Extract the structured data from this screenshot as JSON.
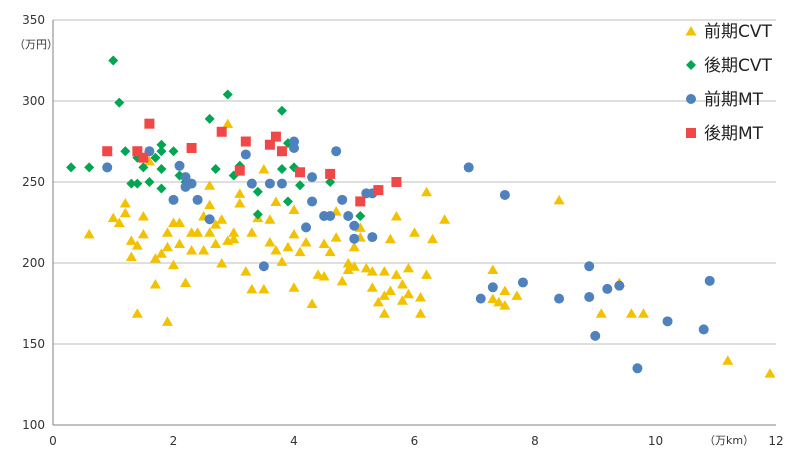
{
  "chart_data": {
    "type": "scatter",
    "title": "",
    "xlabel": "",
    "ylabel": "",
    "x_unit": "（万km）",
    "y_unit": "（万円）",
    "xlim": [
      0,
      12
    ],
    "ylim": [
      100,
      350
    ],
    "x_ticks": [
      0,
      2,
      4,
      6,
      8,
      10,
      12
    ],
    "y_ticks": [
      100,
      150,
      200,
      250,
      300,
      350
    ],
    "grid": "horizontal",
    "legend_position": "right",
    "series": [
      {
        "name": "前期CVT",
        "marker": "triangle",
        "color": "#f2c200",
        "points": [
          [
            0.6,
            218
          ],
          [
            1.0,
            228
          ],
          [
            1.1,
            225
          ],
          [
            1.2,
            231
          ],
          [
            1.2,
            237
          ],
          [
            1.3,
            204
          ],
          [
            1.3,
            214
          ],
          [
            1.4,
            211
          ],
          [
            1.5,
            229
          ],
          [
            1.5,
            218
          ],
          [
            1.4,
            169
          ],
          [
            1.7,
            187
          ],
          [
            1.7,
            203
          ],
          [
            1.8,
            206
          ],
          [
            1.9,
            210
          ],
          [
            1.9,
            219
          ],
          [
            2.0,
            225
          ],
          [
            2.0,
            199
          ],
          [
            1.9,
            164
          ],
          [
            2.1,
            225
          ],
          [
            2.1,
            212
          ],
          [
            2.2,
            188
          ],
          [
            2.3,
            208
          ],
          [
            2.3,
            219
          ],
          [
            2.4,
            219
          ],
          [
            2.5,
            229
          ],
          [
            2.5,
            208
          ],
          [
            2.6,
            219
          ],
          [
            2.6,
            236
          ],
          [
            2.7,
            212
          ],
          [
            2.7,
            224
          ],
          [
            2.8,
            200
          ],
          [
            2.8,
            227
          ],
          [
            2.9,
            214
          ],
          [
            3.0,
            219
          ],
          [
            3.0,
            215
          ],
          [
            3.1,
            237
          ],
          [
            3.2,
            195
          ],
          [
            3.3,
            184
          ],
          [
            3.3,
            219
          ],
          [
            3.4,
            228
          ],
          [
            3.5,
            184
          ],
          [
            3.5,
            258
          ],
          [
            3.6,
            213
          ],
          [
            3.6,
            227
          ],
          [
            3.7,
            208
          ],
          [
            3.7,
            238
          ],
          [
            3.8,
            201
          ],
          [
            3.9,
            210
          ],
          [
            4.0,
            218
          ],
          [
            4.0,
            233
          ],
          [
            4.1,
            207
          ],
          [
            4.0,
            185
          ],
          [
            4.2,
            213
          ],
          [
            4.3,
            175
          ],
          [
            4.4,
            193
          ],
          [
            4.5,
            192
          ],
          [
            4.5,
            212
          ],
          [
            4.6,
            207
          ],
          [
            4.7,
            232
          ],
          [
            4.7,
            216
          ],
          [
            4.8,
            189
          ],
          [
            4.9,
            196
          ],
          [
            4.9,
            200
          ],
          [
            5.0,
            198
          ],
          [
            5.0,
            210
          ],
          [
            5.1,
            222
          ],
          [
            5.1,
            216
          ],
          [
            5.2,
            197
          ],
          [
            5.3,
            185
          ],
          [
            5.3,
            195
          ],
          [
            5.4,
            176
          ],
          [
            5.5,
            169
          ],
          [
            5.5,
            180
          ],
          [
            5.5,
            195
          ],
          [
            5.6,
            183
          ],
          [
            5.6,
            215
          ],
          [
            5.7,
            193
          ],
          [
            5.7,
            229
          ],
          [
            5.8,
            177
          ],
          [
            5.8,
            187
          ],
          [
            5.9,
            181
          ],
          [
            5.9,
            197
          ],
          [
            6.0,
            219
          ],
          [
            6.1,
            169
          ],
          [
            6.2,
            244
          ],
          [
            6.3,
            215
          ],
          [
            6.5,
            227
          ],
          [
            6.1,
            179
          ],
          [
            6.2,
            193
          ],
          [
            1.6,
            263
          ],
          [
            2.6,
            248
          ],
          [
            2.9,
            286
          ],
          [
            3.1,
            243
          ],
          [
            7.3,
            196
          ],
          [
            7.3,
            178
          ],
          [
            7.4,
            176
          ],
          [
            7.5,
            174
          ],
          [
            7.5,
            183
          ],
          [
            7.7,
            180
          ],
          [
            8.4,
            239
          ],
          [
            9.1,
            169
          ],
          [
            9.4,
            188
          ],
          [
            9.6,
            169
          ],
          [
            9.8,
            169
          ],
          [
            11.2,
            140
          ],
          [
            11.9,
            132
          ]
        ]
      },
      {
        "name": "後期CVT",
        "marker": "diamond",
        "color": "#00a651",
        "points": [
          [
            0.3,
            259
          ],
          [
            0.6,
            259
          ],
          [
            0.9,
            269
          ],
          [
            1.0,
            325
          ],
          [
            1.1,
            299
          ],
          [
            1.2,
            269
          ],
          [
            1.3,
            249
          ],
          [
            1.4,
            265
          ],
          [
            1.4,
            249
          ],
          [
            1.5,
            259
          ],
          [
            1.6,
            250
          ],
          [
            1.7,
            265
          ],
          [
            1.8,
            273
          ],
          [
            1.8,
            269
          ],
          [
            1.8,
            258
          ],
          [
            1.8,
            246
          ],
          [
            2.0,
            269
          ],
          [
            2.1,
            254
          ],
          [
            2.2,
            250
          ],
          [
            2.6,
            289
          ],
          [
            2.7,
            258
          ],
          [
            2.9,
            304
          ],
          [
            3.0,
            254
          ],
          [
            3.1,
            260
          ],
          [
            3.3,
            249
          ],
          [
            3.4,
            244
          ],
          [
            3.4,
            230
          ],
          [
            3.8,
            294
          ],
          [
            3.8,
            258
          ],
          [
            3.9,
            274
          ],
          [
            3.9,
            238
          ],
          [
            4.0,
            259
          ],
          [
            4.1,
            248
          ],
          [
            4.6,
            250
          ],
          [
            5.1,
            229
          ],
          [
            5.3,
            216
          ]
        ]
      },
      {
        "name": "前期MT",
        "marker": "circle",
        "color": "#4f81bd",
        "points": [
          [
            0.9,
            259
          ],
          [
            1.6,
            269
          ],
          [
            2.0,
            239
          ],
          [
            2.1,
            260
          ],
          [
            2.2,
            253
          ],
          [
            2.2,
            247
          ],
          [
            2.3,
            249
          ],
          [
            2.4,
            239
          ],
          [
            2.6,
            227
          ],
          [
            3.2,
            267
          ],
          [
            3.3,
            249
          ],
          [
            3.5,
            198
          ],
          [
            3.6,
            249
          ],
          [
            3.8,
            249
          ],
          [
            4.0,
            275
          ],
          [
            4.0,
            271
          ],
          [
            4.2,
            222
          ],
          [
            4.3,
            238
          ],
          [
            4.3,
            253
          ],
          [
            4.5,
            229
          ],
          [
            4.6,
            229
          ],
          [
            4.7,
            269
          ],
          [
            4.8,
            239
          ],
          [
            4.9,
            229
          ],
          [
            5.0,
            223
          ],
          [
            5.0,
            215
          ],
          [
            5.2,
            243
          ],
          [
            5.3,
            243
          ],
          [
            5.3,
            216
          ],
          [
            6.9,
            259
          ],
          [
            7.1,
            178
          ],
          [
            7.3,
            185
          ],
          [
            7.5,
            242
          ],
          [
            7.8,
            188
          ],
          [
            8.4,
            178
          ],
          [
            8.9,
            198
          ],
          [
            8.9,
            179
          ],
          [
            9.0,
            155
          ],
          [
            9.2,
            184
          ],
          [
            9.4,
            186
          ],
          [
            9.7,
            135
          ],
          [
            10.2,
            164
          ],
          [
            10.8,
            159
          ],
          [
            10.9,
            189
          ]
        ]
      },
      {
        "name": "後期MT",
        "marker": "square",
        "color": "#f04848",
        "points": [
          [
            0.9,
            269
          ],
          [
            1.4,
            269
          ],
          [
            1.5,
            265
          ],
          [
            1.6,
            286
          ],
          [
            2.3,
            271
          ],
          [
            2.8,
            281
          ],
          [
            3.1,
            257
          ],
          [
            3.2,
            275
          ],
          [
            3.6,
            273
          ],
          [
            3.7,
            278
          ],
          [
            3.8,
            269
          ],
          [
            4.1,
            256
          ],
          [
            4.6,
            255
          ],
          [
            5.1,
            238
          ],
          [
            5.4,
            245
          ],
          [
            5.7,
            250
          ]
        ]
      }
    ]
  }
}
